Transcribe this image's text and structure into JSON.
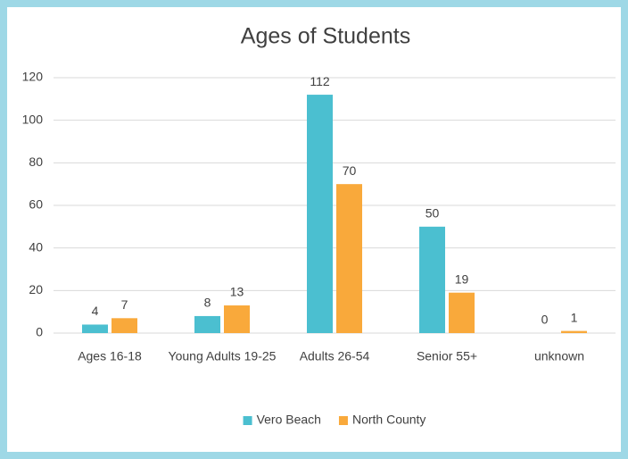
{
  "chart_data": {
    "type": "bar",
    "title": "Ages of Students",
    "categories": [
      "Ages 16-18",
      "Young Adults 19-25",
      "Adults 26-54",
      "Senior 55+",
      "unknown"
    ],
    "series": [
      {
        "name": "Vero Beach",
        "color": "#4bbfd0",
        "values": [
          4,
          8,
          112,
          50,
          0
        ]
      },
      {
        "name": "North County",
        "color": "#f9a93b",
        "values": [
          7,
          13,
          70,
          19,
          1
        ]
      }
    ],
    "ylim": [
      0,
      120
    ],
    "yticks": [
      0,
      20,
      40,
      60,
      80,
      100,
      120
    ],
    "grid": true,
    "legend": "bottom"
  }
}
